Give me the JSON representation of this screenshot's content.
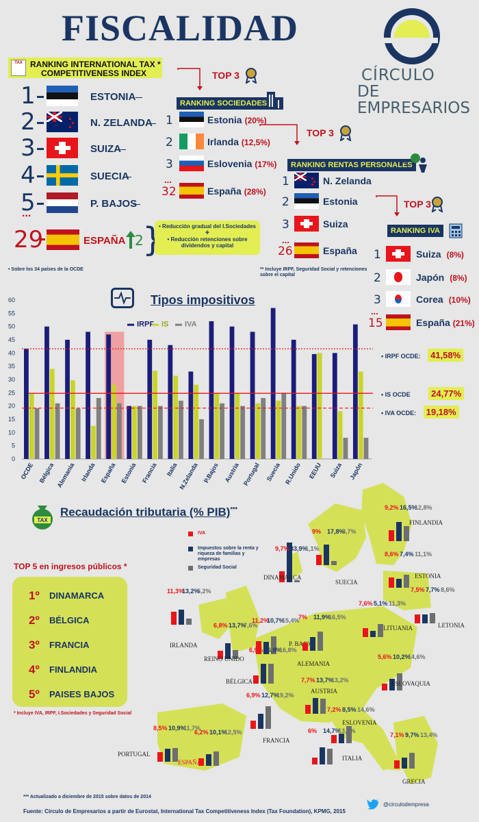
{
  "title": "FISCALIDAD",
  "logo": {
    "line1": "CÍRCULO",
    "line2": "DE EMPRESARIOS"
  },
  "itci": {
    "header_line1": "RANKING INTERNATIONAL TAX *",
    "header_line2": "COMPETITIVENESS INDEX",
    "tax_icon_label": "TAX",
    "items": [
      {
        "rank": "1",
        "country": "ESTONIA"
      },
      {
        "rank": "2",
        "country": "N. ZELANDA"
      },
      {
        "rank": "3",
        "country": "SUIZA"
      },
      {
        "rank": "4",
        "country": "SUECIA"
      },
      {
        "rank": "5",
        "country": "P. BAJOS"
      }
    ],
    "dots": "...",
    "spain_rank": "29",
    "spain_country": "ESPAÑA",
    "spain_up": "2",
    "reforms": [
      "Reducción gradual del I.Sociedades",
      "+",
      "Reducción retenciones sobre dividendos y capital"
    ],
    "footnote": "• Sobre los 34 países de la OCDE"
  },
  "sociedades": {
    "top3": "TOP 3",
    "header": "RANKING SOCIEDADES",
    "items": [
      {
        "rank": "1",
        "country": "Estonia",
        "pct": "(20%)"
      },
      {
        "rank": "2",
        "country": "Irlanda",
        "pct": "(12,5%)"
      },
      {
        "rank": "3",
        "country": "Eslovenia",
        "pct": "(17%)"
      }
    ],
    "dots": "...",
    "spain_rank": "32",
    "spain_country": "España",
    "spain_pct": "(28%)"
  },
  "rentas": {
    "top3": "TOP 3",
    "header": "RANKING RENTAS PERSONALES",
    "header_mark": "**",
    "items": [
      {
        "rank": "1",
        "country": "N. Zelanda"
      },
      {
        "rank": "2",
        "country": "Estonia"
      },
      {
        "rank": "3",
        "country": "Suiza"
      }
    ],
    "dots": "...",
    "spain_rank": "26",
    "spain_country": "España",
    "footnote_line1": "** Incluye IRPF, Seguridad Social y retenciones",
    "footnote_line2": "sobre el  capital"
  },
  "iva": {
    "top3": "TOP 3",
    "header": "RANKING IVA",
    "items": [
      {
        "rank": "1",
        "country": "Suiza",
        "pct": "(8%)"
      },
      {
        "rank": "2",
        "country": "Japón",
        "pct": "(8%)"
      },
      {
        "rank": "3",
        "country": "Corea",
        "pct": "(10%)"
      }
    ],
    "dots": "...",
    "spain_rank": "15",
    "spain_country": "España",
    "spain_pct": "(21%)"
  },
  "tipos": {
    "title": "Tipos impositivos",
    "ocde_irpf_label": "• IRPF OCDE:",
    "ocde_irpf_value": "41,58%",
    "ocde_is_label": "• IS OCDE",
    "ocde_is_value": "24,77%",
    "ocde_iva_label": "• IVA OCDE:",
    "ocde_iva_value": "19,18%"
  },
  "chart_data": {
    "type": "bar",
    "categories": [
      "OCDE",
      "Bélgica",
      "Alemania",
      "Irlanda",
      "España",
      "Estonia",
      "Francia",
      "Italia",
      "N.Zelanda",
      "P.Bajos",
      "Austria",
      "Portugal",
      "Suecia",
      "R.Unido",
      "EEUU",
      "Suiza",
      "Japón"
    ],
    "series": [
      {
        "name": "IRPF",
        "color": "#1c1d7a",
        "values": [
          41.6,
          50,
          45,
          48,
          47,
          20,
          45,
          43,
          33,
          52,
          50,
          48,
          57,
          45,
          39.6,
          40,
          50.8
        ]
      },
      {
        "name": "IS",
        "color": "#c9d42a",
        "values": [
          24.8,
          34,
          29.7,
          12.5,
          28,
          20,
          33.3,
          31.4,
          28,
          25,
          25,
          21,
          22,
          20,
          40,
          18,
          33
        ]
      },
      {
        "name": "IVA",
        "color": "#808080",
        "values": [
          19.2,
          21,
          19,
          23,
          21,
          20,
          20,
          22,
          15,
          21,
          20,
          23,
          25,
          20,
          0,
          8,
          8
        ]
      }
    ],
    "ylim": [
      0,
      60
    ],
    "yticks": [
      "0",
      "5",
      "10",
      "15",
      "20",
      "25",
      "30",
      "35",
      "40",
      "45",
      "50",
      "55",
      "60"
    ],
    "reference_lines": [
      41.58,
      24.77,
      19.18
    ],
    "highlight": "España",
    "grid": false,
    "legend": "top"
  },
  "recaudacion": {
    "title": "Recaudación tributaria (% PIB)",
    "title_mark": "***",
    "legend": [
      {
        "label": "IVA",
        "color": "#e8151b"
      },
      {
        "label": "Impuestos sobre la renta y riqueza de familias y empresas",
        "color": "#1b3563"
      },
      {
        "label": "Seguridad Social",
        "color": "#6d6e70"
      }
    ],
    "top5_title": "TOP 5 en ingresos públicos *",
    "top5": [
      {
        "pos": "1º",
        "country": "DINAMARCA"
      },
      {
        "pos": "2º",
        "country": "BÉLGICA"
      },
      {
        "pos": "3º",
        "country": "FRANCIA"
      },
      {
        "pos": "4º",
        "country": "FINLANDIA"
      },
      {
        "pos": "5º",
        "country": "PAISES BAJOS"
      }
    ],
    "top5_note": "* Incluye IVA, IRPF, I.Sociedades y Seguridad Social",
    "countries": [
      {
        "name": "FINLANDIA",
        "iva": "9,2%",
        "renta": "16,5%",
        "ss": "12,8%"
      },
      {
        "name": "SUECIA",
        "iva": "9%",
        "renta": "17,8%",
        "ss": "3,7%"
      },
      {
        "name": "DINAMARCA",
        "iva": "9,7%",
        "renta": "33,9%",
        "ss": "1,1%"
      },
      {
        "name": "ESTONIA",
        "iva": "8,6%",
        "renta": "7,4%",
        "ss": "11,1%"
      },
      {
        "name": "LETONIA",
        "iva": "7,5%",
        "renta": "7,7%",
        "ss": "8,6%"
      },
      {
        "name": "LITUANIA",
        "iva": "7,6%",
        "renta": "5,1%",
        "ss": "11,3%"
      },
      {
        "name": "IRLANDA",
        "iva": "11,3%",
        "renta": "13,2%",
        "ss": "5,2%"
      },
      {
        "name": "REINO UNIDO",
        "iva": "6,8%",
        "renta": "13,7%",
        "ss": "7,6%"
      },
      {
        "name": "P. BAJOS",
        "iva": "11,2%",
        "renta": "10,7%",
        "ss": "15,4%"
      },
      {
        "name": "ALEMANIA",
        "iva": "7%",
        "renta": "11,9%",
        "ss": "16,5%"
      },
      {
        "name": "BÉLGICA",
        "iva": "6,9%",
        "renta": "16,9%",
        "ss": "16,8%"
      },
      {
        "name": "ESLOVAQUIA",
        "iva": "5,6%",
        "renta": "10,2%",
        "ss": "14,6%"
      },
      {
        "name": "AUSTRIA",
        "iva": "7,7%",
        "renta": "13,7%",
        "ss": "13,2%"
      },
      {
        "name": "ESLOVENIA",
        "iva": "7,2%",
        "renta": "8,5%",
        "ss": "14,6%"
      },
      {
        "name": "FRANCIA",
        "iva": "6,9%",
        "renta": "12,7%",
        "ss": "19,2%"
      },
      {
        "name": "PORTUGAL",
        "iva": "8,5%",
        "renta": "10,9%",
        "ss": "11,7%"
      },
      {
        "name": "ESPAÑA",
        "iva": "6,2%",
        "renta": "10,1%",
        "ss": "12,5%"
      },
      {
        "name": "ITALIA",
        "iva": "6%",
        "renta": "14,7%",
        "ss": "13,4%"
      },
      {
        "name": "GRECIA",
        "iva": "7,1%",
        "renta": "9,7%",
        "ss": "13,4%"
      }
    ]
  },
  "footer": {
    "note": "*** Actualizado a diciembre de 2015 sobre datos de 2014",
    "twitter": "@circulodempresa",
    "source": "Fuente: Círculo de Empresarios a partir de Eurostat, International Tax Competitiveness Index (Tax Foundation), KPMG, 2015"
  }
}
